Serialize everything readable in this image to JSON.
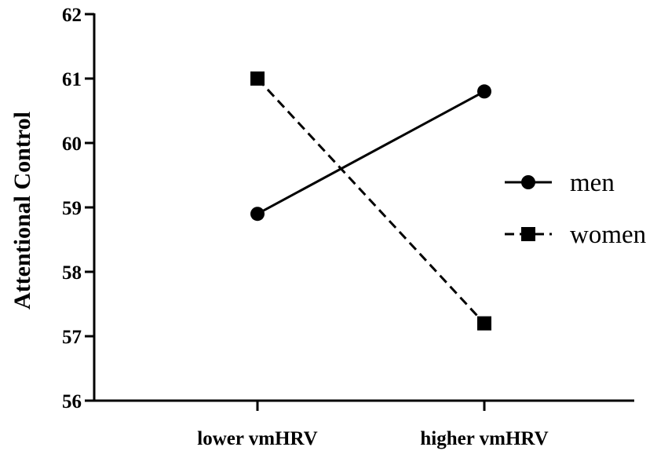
{
  "chart_data": {
    "type": "line",
    "categories": [
      "lower vmHRV",
      "higher vmHRV"
    ],
    "ylabel": "Attentional Control",
    "ylim": [
      56,
      62
    ],
    "yticks": [
      "56",
      "57",
      "58",
      "59",
      "60",
      "61",
      "62"
    ],
    "grid": false,
    "legend_position": "right",
    "series": [
      {
        "name": "men",
        "values": [
          58.9,
          60.8
        ],
        "marker": "circle",
        "line": "solid",
        "color": "#000000"
      },
      {
        "name": "women",
        "values": [
          61.0,
          57.2
        ],
        "marker": "square",
        "line": "dashed",
        "color": "#000000"
      }
    ]
  }
}
